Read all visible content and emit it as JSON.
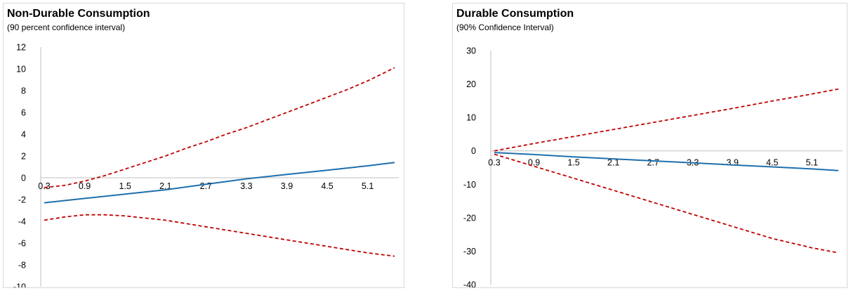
{
  "colors": {
    "central": "#1f6fad",
    "band": "#c00000",
    "axis": "#bfbfbf",
    "frame": "#d9d9d9"
  },
  "chart_data": [
    {
      "type": "line",
      "title": "Non-Durable Consumption",
      "subtitle": "(90 percent confidence interval)",
      "ylim": [
        -10,
        12
      ],
      "yticks": [
        12,
        10,
        8,
        6,
        4,
        2,
        0,
        -2,
        -4,
        -6,
        -8,
        -10
      ],
      "x_tick_labels": [
        "0.3",
        "0.9",
        "1.5",
        "2.1",
        "2.7",
        "3.3",
        "3.9",
        "4.5",
        "5.1"
      ],
      "xlim": [
        0.3,
        5.5
      ],
      "grid": false,
      "series": [
        {
          "role": "upper",
          "style": "dashed",
          "x": [
            0.3,
            0.6,
            0.9,
            1.2,
            1.5,
            1.8,
            2.1,
            2.4,
            2.7,
            3.0,
            3.3,
            3.6,
            3.9,
            4.2,
            4.5,
            4.8,
            5.1,
            5.5
          ],
          "values": [
            -0.9,
            -0.7,
            -0.3,
            0.2,
            0.8,
            1.4,
            2.0,
            2.7,
            3.3,
            4.0,
            4.6,
            5.3,
            6.0,
            6.7,
            7.4,
            8.1,
            8.9,
            10.1
          ]
        },
        {
          "role": "estimate",
          "style": "solid",
          "x": [
            0.3,
            0.9,
            1.5,
            2.1,
            2.7,
            3.3,
            3.9,
            4.5,
            5.1,
            5.5
          ],
          "values": [
            -2.3,
            -1.9,
            -1.5,
            -1.1,
            -0.6,
            -0.1,
            0.3,
            0.7,
            1.1,
            1.4
          ]
        },
        {
          "role": "lower",
          "style": "dashed",
          "x": [
            0.3,
            0.6,
            0.9,
            1.2,
            1.5,
            1.8,
            2.1,
            2.4,
            2.7,
            3.0,
            3.3,
            3.6,
            3.9,
            4.2,
            4.5,
            4.8,
            5.1,
            5.5
          ],
          "values": [
            -3.9,
            -3.6,
            -3.4,
            -3.4,
            -3.5,
            -3.7,
            -3.9,
            -4.2,
            -4.5,
            -4.8,
            -5.1,
            -5.4,
            -5.7,
            -6.0,
            -6.3,
            -6.6,
            -6.9,
            -7.2
          ]
        }
      ]
    },
    {
      "type": "line",
      "title": "Durable Consumption",
      "subtitle": "(90% Confidence Interval)",
      "ylim": [
        -40,
        30
      ],
      "yticks": [
        30,
        20,
        10,
        0,
        -10,
        -20,
        -30,
        -40
      ],
      "x_tick_labels": [
        "0.3",
        "0.9",
        "1.5",
        "2.1",
        "2.7",
        "3.3",
        "3.9",
        "4.5",
        "5.1"
      ],
      "xlim": [
        0.3,
        5.5
      ],
      "grid": false,
      "series": [
        {
          "role": "upper",
          "style": "dashed",
          "x": [
            0.3,
            0.9,
            1.5,
            2.1,
            2.7,
            3.3,
            3.9,
            4.5,
            5.1,
            5.5
          ],
          "values": [
            0.0,
            2.2,
            4.3,
            6.4,
            8.5,
            10.6,
            12.7,
            14.9,
            17.0,
            18.5
          ]
        },
        {
          "role": "estimate",
          "style": "solid",
          "x": [
            0.3,
            0.9,
            1.5,
            2.1,
            2.7,
            3.3,
            3.9,
            4.5,
            5.1,
            5.5
          ],
          "values": [
            -0.5,
            -1.1,
            -1.8,
            -2.4,
            -3.0,
            -3.6,
            -4.2,
            -4.8,
            -5.4,
            -5.9
          ]
        },
        {
          "role": "lower",
          "style": "dashed",
          "x": [
            0.3,
            0.9,
            1.5,
            2.1,
            2.7,
            3.3,
            3.9,
            4.5,
            5.1,
            5.5
          ],
          "values": [
            -1.0,
            -4.6,
            -8.2,
            -11.8,
            -15.4,
            -19.0,
            -22.6,
            -26.2,
            -29.0,
            -30.5
          ]
        }
      ]
    }
  ]
}
